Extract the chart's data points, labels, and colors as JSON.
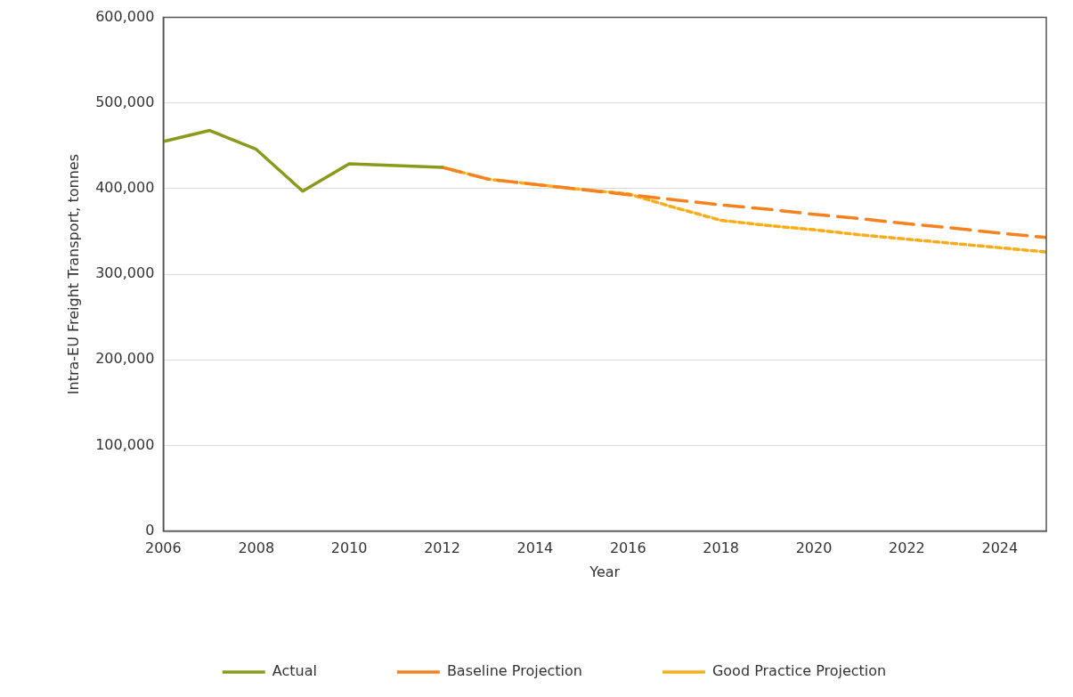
{
  "chart_data": {
    "type": "line",
    "xlabel": "Year",
    "ylabel": "Intra-EU Freight Transport, tonnes",
    "xlim": [
      2006,
      2025
    ],
    "xticks": [
      2006,
      2008,
      2010,
      2012,
      2014,
      2016,
      2018,
      2020,
      2022,
      2024
    ],
    "ylim": [
      0,
      600000
    ],
    "yticks": [
      {
        "value": 0,
        "label": "0"
      },
      {
        "value": 100000,
        "label": "100,000"
      },
      {
        "value": 200000,
        "label": "200,000"
      },
      {
        "value": 300000,
        "label": "300,000"
      },
      {
        "value": 400000,
        "label": "400,000"
      },
      {
        "value": 500000,
        "label": "500,000"
      },
      {
        "value": 600000,
        "label": "600,000"
      }
    ],
    "grid": "y",
    "legend": "bottom",
    "marker": "none",
    "series": [
      {
        "name": "Actual",
        "color": "#8b9a1a",
        "line_style": "solid",
        "x": [
          2006,
          2007,
          2008,
          2009,
          2010,
          2011,
          2012
        ],
        "values": [
          455000,
          468000,
          446000,
          397000,
          429000,
          427000,
          425000
        ]
      },
      {
        "name": "Baseline Projection",
        "color": "#f58220",
        "line_style": "dashed",
        "x": [
          2012,
          2013,
          2014,
          2015,
          2016,
          2017,
          2018,
          2019,
          2020,
          2021,
          2022,
          2023,
          2024,
          2025
        ],
        "values": [
          425000,
          411000,
          405000,
          399000,
          393000,
          387000,
          381000,
          376000,
          370000,
          365000,
          359000,
          354000,
          348000,
          343000
        ]
      },
      {
        "name": "Good Practice Projection",
        "color": "#fbac18",
        "line_style": "dotted",
        "x": [
          2012,
          2013,
          2014,
          2015,
          2016,
          2017,
          2018,
          2019,
          2020,
          2021,
          2022,
          2023,
          2024,
          2025
        ],
        "values": [
          425000,
          411000,
          405000,
          399000,
          394000,
          378000,
          363000,
          357000,
          352000,
          346000,
          341000,
          336000,
          331000,
          326000
        ]
      }
    ]
  }
}
